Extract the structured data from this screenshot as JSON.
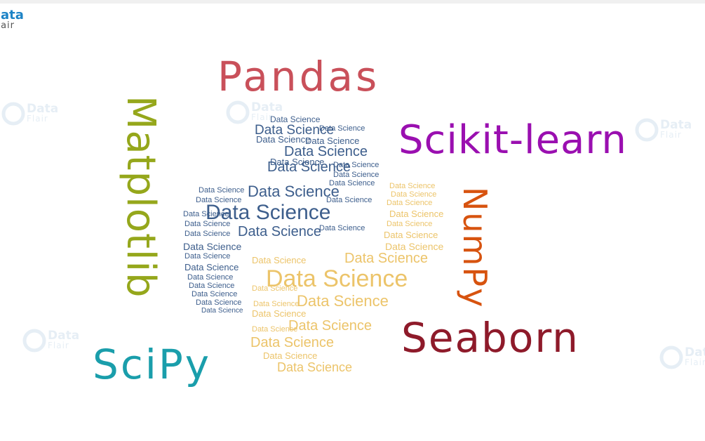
{
  "brand": {
    "line1": "Data",
    "line2": "Flair"
  },
  "watermark": {
    "line1": "Data",
    "line2": "Flair"
  },
  "libraries": {
    "pandas": "Pandas",
    "scikit": "Scikit-learn",
    "matplotlib": "Matplotlib",
    "numpy": "NumPy",
    "seaborn": "Seaborn",
    "scipy": "SciPy"
  },
  "cloud_word": "Data Science",
  "colors": {
    "pandas": "#c9505a",
    "scikit": "#9a0fb0",
    "matplotlib": "#95a71b",
    "numpy": "#d7530f",
    "seaborn": "#8e1a2a",
    "scipy": "#1a9eab",
    "python_blue": "#3d5e8c",
    "python_yellow": "#ecc46a",
    "brand": "#1c83c6"
  },
  "icons": [
    "dataflair-logo-icon",
    "python-logo-icon"
  ]
}
